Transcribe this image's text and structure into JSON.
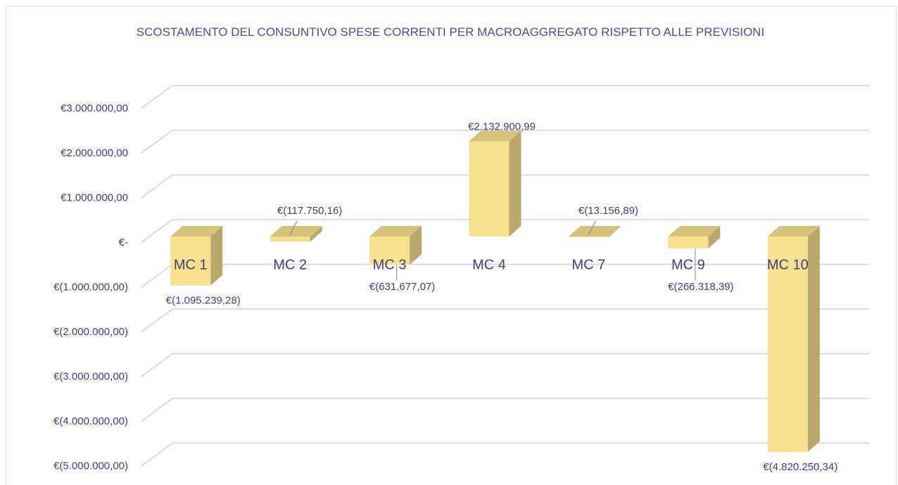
{
  "chart_data": {
    "type": "bar3d",
    "title": "SCOSTAMENTO DEL CONSUNTIVO SPESE CORRENTI PER MACROAGGREGATO RISPETTO ALLE PREVISIONI",
    "categories": [
      "MC 1",
      "MC 2",
      "MC 3",
      "MC 4",
      "MC 7",
      "MC 9",
      "MC 10"
    ],
    "values": [
      -1095239.28,
      -117750.16,
      -631677.07,
      2132900.99,
      -13156.89,
      -266318.39,
      -4820250.34
    ],
    "value_labels": [
      "€(1.095.239,28)",
      "€(117.750,16)",
      "€(631.677,07)",
      "€2.132.900,99",
      "€(13.156,89)",
      "€(266.318,39)",
      "€(4.820.250,34)"
    ],
    "color": "#f5e08f",
    "ylim": [
      -5000000,
      3000000
    ],
    "yticks": [
      {
        "value": 3000000,
        "label": "€3.000.000,00"
      },
      {
        "value": 2000000,
        "label": "€2.000.000,00"
      },
      {
        "value": 1000000,
        "label": "€1.000.000,00"
      },
      {
        "value": 0,
        "label": "€-"
      },
      {
        "value": -1000000,
        "label": "€(1.000.000,00)"
      },
      {
        "value": -2000000,
        "label": "€(2.000.000,00)"
      },
      {
        "value": -3000000,
        "label": "€(3.000.000,00)"
      },
      {
        "value": -4000000,
        "label": "€(4.000.000,00)"
      },
      {
        "value": -5000000,
        "label": "€(5.000.000,00)"
      }
    ],
    "grid": true
  }
}
